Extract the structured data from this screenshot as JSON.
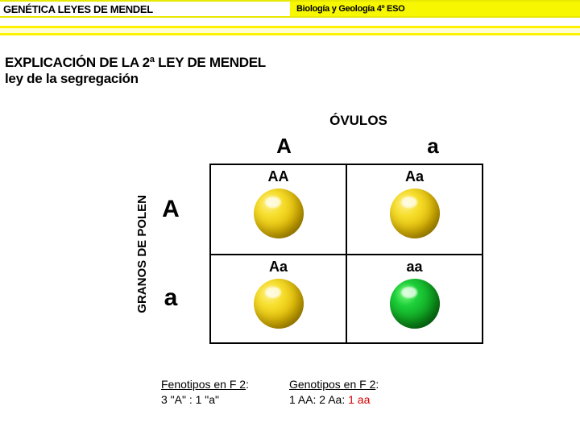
{
  "header": {
    "left": "GENÉTICA LEYES DE MENDEL",
    "right": "Biología y Geología 4º ESO"
  },
  "title_line1": "EXPLICACIÓN DE LA 2ª LEY DE MENDEL",
  "title_line2": "ley de la segregación",
  "punnett": {
    "ovulos_label": "ÓVULOS",
    "polen_label": "GRANOS DE POLEN",
    "col_headers": {
      "c1": "A",
      "c2": "a"
    },
    "row_headers": {
      "r1": "A",
      "r2": "a"
    },
    "cells": {
      "c11": {
        "genotype": "AA",
        "color": "yellow"
      },
      "c12": {
        "genotype": "Aa",
        "color": "yellow"
      },
      "c21": {
        "genotype": "Aa",
        "color": "yellow"
      },
      "c22": {
        "genotype": "aa",
        "color": "green"
      }
    }
  },
  "footer": {
    "feno_title": "Fenotipos en F 2",
    "feno_ratio": "3 \"A\" : 1 \"a\"",
    "geno_title": "Genotipos en F 2",
    "geno_text_a": "1 AA: 2 Aa: ",
    "geno_text_b": "1 aa"
  },
  "colors": {
    "accent_yellow": "#fff200",
    "yellow_bar": "#f7f700",
    "red": "#d40000"
  }
}
